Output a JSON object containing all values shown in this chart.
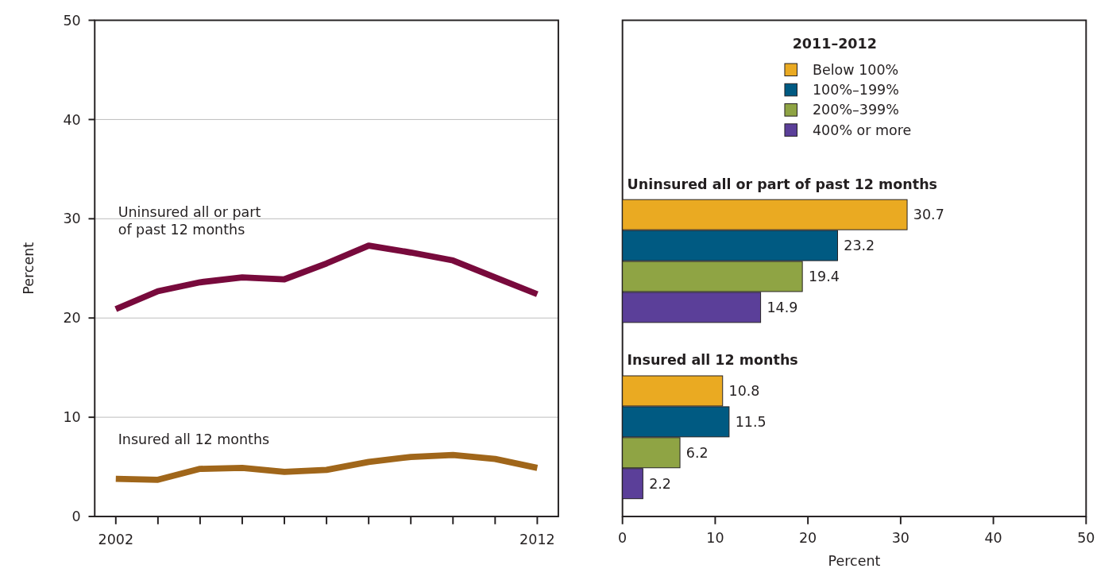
{
  "chart_data": [
    {
      "type": "line",
      "x": [
        2002,
        2003,
        2004,
        2005,
        2006,
        2007,
        2008,
        2009,
        2010,
        2011,
        2012
      ],
      "ylabel": "Percent",
      "xlim": [
        2001.5,
        2012.5
      ],
      "xticks": [
        2002,
        {
          "value": 2003,
          "label": null
        },
        {
          "value": 2004,
          "label": null
        },
        {
          "value": 2005,
          "label": null
        },
        {
          "value": 2006,
          "label": null
        },
        {
          "value": 2007,
          "label": null
        },
        {
          "value": 2008,
          "label": null
        },
        {
          "value": 2009,
          "label": null
        },
        {
          "value": 2010,
          "label": null
        },
        {
          "value": 2011,
          "label": null
        },
        2012
      ],
      "ylim": [
        0,
        50
      ],
      "yticks": [
        0,
        10,
        20,
        30,
        40,
        50
      ],
      "grid": "y",
      "marker": "none",
      "line_style": "solid",
      "series": [
        {
          "name": "Uninsured all or part of past 12 months",
          "color": "#780a3c",
          "values": [
            20.9,
            22.7,
            23.6,
            24.1,
            23.9,
            25.5,
            27.3,
            26.6,
            25.8,
            24.1,
            22.4
          ]
        },
        {
          "name": "Insured all 12 months",
          "color": "#a0661a",
          "values": [
            3.8,
            3.7,
            4.8,
            4.9,
            4.5,
            4.7,
            5.5,
            6.0,
            6.2,
            5.8,
            4.9
          ]
        }
      ]
    },
    {
      "type": "bar",
      "orientation": "horizontal",
      "categories": [
        "Uninsured all or part of past 12 months",
        "Insured all 12 months"
      ],
      "xlabel": "Percent",
      "xlim": [
        0,
        50
      ],
      "xticks": [
        0,
        10,
        20,
        30,
        40,
        50
      ],
      "legend": "top",
      "legend_title": "2011–2012",
      "data_labels": true,
      "grid": false,
      "series": [
        {
          "name": "Below 100%",
          "color": "#eaaa22",
          "values": [
            30.7,
            10.8
          ]
        },
        {
          "name": "100%–199%",
          "color": "#005a82",
          "values": [
            23.2,
            11.5
          ]
        },
        {
          "name": "200%–399%",
          "color": "#8fa444",
          "values": [
            19.4,
            6.2
          ]
        },
        {
          "name": "400% or more",
          "color": "#5b3f99",
          "values": [
            14.9,
            2.2
          ]
        }
      ]
    }
  ]
}
